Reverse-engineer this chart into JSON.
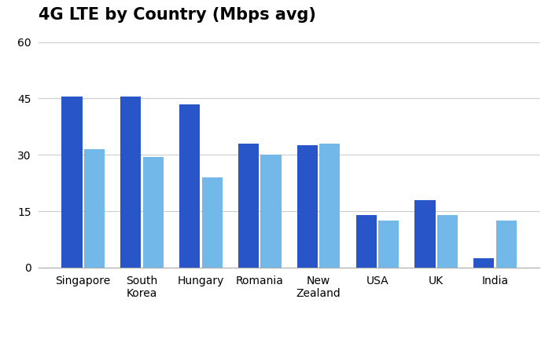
{
  "title": "4G LTE by Country (Mbps avg)",
  "categories": [
    "Singapore",
    "South\nKorea",
    "Hungary",
    "Romania",
    "New\nZealand",
    "USA",
    "UK",
    "India"
  ],
  "values_2016": [
    45.5,
    45.5,
    43.5,
    33,
    32.5,
    14,
    18,
    2.5
  ],
  "values_2015": [
    31.5,
    29.5,
    24,
    30,
    33,
    12.5,
    14,
    12.5
  ],
  "color_2016": "#2855C8",
  "color_2015": "#72B8E8",
  "ylim": [
    0,
    63
  ],
  "yticks": [
    0,
    15,
    30,
    45,
    60
  ],
  "background_color": "#ffffff",
  "grid_color": "#cccccc",
  "title_fontsize": 15,
  "tick_fontsize": 10,
  "legend_fontsize": 10.5
}
